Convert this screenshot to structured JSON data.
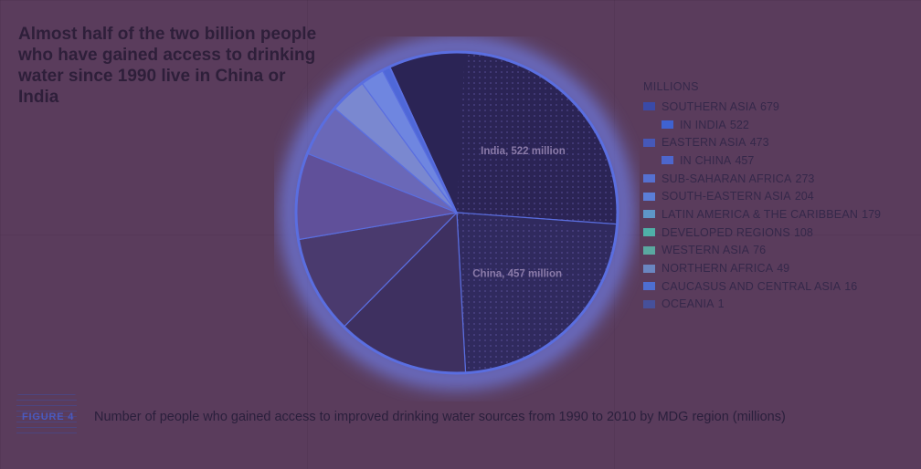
{
  "headline": "Almost half of the two billion people who have gained access to drinking water since 1990 live in China or India",
  "figure_label": "FIGURE 4",
  "caption": "Number of people who gained access to improved drinking water sources from 1990 to 2010 by MDG region (millions)",
  "chart_data": {
    "type": "pie",
    "title": "",
    "unit_label": "MILLIONS",
    "slices": [
      {
        "name": "SOUTHERN ASIA",
        "value": 679,
        "color": "#2b2455"
      },
      {
        "name": "EASTERN ASIA",
        "value": 473,
        "color": "#302a5e"
      },
      {
        "name": "SUB-SAHARAN AFRICA",
        "value": 273,
        "color": "#3e3060"
      },
      {
        "name": "SOUTH-EASTERN ASIA",
        "value": 204,
        "color": "#4a3a6e"
      },
      {
        "name": "LATIN AMERICA & THE CARIBBEAN",
        "value": 179,
        "color": "#60509a"
      },
      {
        "name": "DEVELOPED REGIONS",
        "value": 108,
        "color": "#6a68b8"
      },
      {
        "name": "WESTERN ASIA",
        "value": 76,
        "color": "#7a88d0"
      },
      {
        "name": "NORTHERN AFRICA",
        "value": 49,
        "color": "#6f86e0"
      },
      {
        "name": "CAUCASUS AND CENTRAL ASIA",
        "value": 16,
        "color": "#4f68d8"
      },
      {
        "name": "OCEANIA",
        "value": 1,
        "color": "#4450a0"
      }
    ],
    "sub_slices": [
      {
        "name": "IN INDIA",
        "value": 522,
        "parent": "SOUTHERN ASIA",
        "color": "#3f4fb0",
        "label": "India, 522 million"
      },
      {
        "name": "IN CHINA",
        "value": 457,
        "parent": "EASTERN ASIA",
        "color": "#4a56b4",
        "label": "China, 457 million"
      }
    ],
    "legend": [
      {
        "label": "SOUTHERN ASIA",
        "value": "679",
        "sub": false,
        "color": "#3a4aa8"
      },
      {
        "label": "IN INDIA",
        "value": "522",
        "sub": true,
        "color": "#3f62d0"
      },
      {
        "label": "EASTERN ASIA",
        "value": "473",
        "sub": false,
        "color": "#4658b8"
      },
      {
        "label": "IN CHINA",
        "value": "457",
        "sub": true,
        "color": "#4d66cc"
      },
      {
        "label": "SUB-SAHARAN AFRICA",
        "value": "273",
        "sub": false,
        "color": "#5570d0"
      },
      {
        "label": "SOUTH-EASTERN ASIA",
        "value": "204",
        "sub": false,
        "color": "#5b7ed8"
      },
      {
        "label": "LATIN AMERICA & THE CARIBBEAN",
        "value": "179",
        "sub": false,
        "color": "#5e96c8"
      },
      {
        "label": "DEVELOPED REGIONS",
        "value": "108",
        "sub": false,
        "color": "#4fb0a8"
      },
      {
        "label": "WESTERN ASIA",
        "value": "76",
        "sub": false,
        "color": "#5aa8a0"
      },
      {
        "label": "NORTHERN AFRICA",
        "value": "49",
        "sub": false,
        "color": "#6a86c0"
      },
      {
        "label": "CAUCASUS AND CENTRAL ASIA",
        "value": "16",
        "sub": false,
        "color": "#4e6ed0"
      },
      {
        "label": "OCEANIA",
        "value": "1",
        "sub": false,
        "color": "#46509a"
      }
    ],
    "legend_placement": "right"
  }
}
